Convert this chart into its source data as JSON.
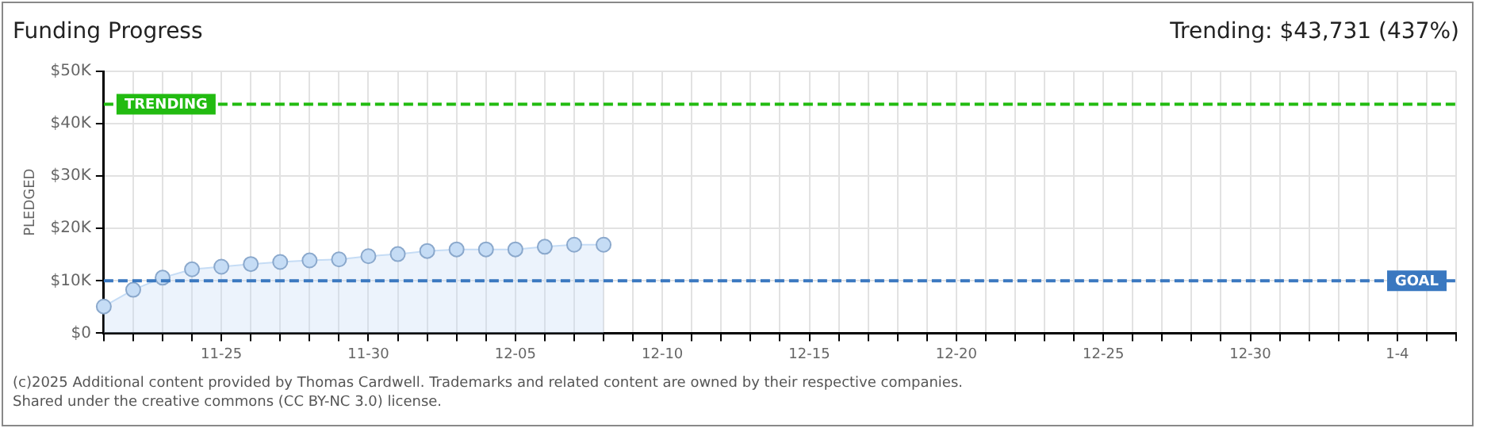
{
  "chart_data": {
    "type": "area",
    "title": "Funding Progress",
    "subtitle": "Trending: $43,731 (437%)",
    "ylabel": "PLEDGED",
    "x": [
      "2025-11-21",
      "2025-11-22",
      "2025-11-23",
      "2025-11-24",
      "2025-11-25",
      "2025-11-26",
      "2025-11-27",
      "2025-11-28",
      "2025-11-29",
      "2025-11-30",
      "2025-12-01",
      "2025-12-02",
      "2025-12-03",
      "2025-12-04",
      "2025-12-05",
      "2025-12-06",
      "2025-12-07",
      "2025-12-08"
    ],
    "series": [
      {
        "color": "#c5dcf5",
        "values": [
          5100,
          8300,
          10600,
          12200,
          12700,
          13200,
          13600,
          13900,
          14100,
          14700,
          15100,
          15700,
          16000,
          16000,
          16000,
          16500,
          16900,
          16900
        ]
      }
    ],
    "xlim": [
      "2025-11-21",
      "2026-01-06"
    ],
    "xticks": [
      {
        "value": "2025-11-21",
        "label": null
      },
      {
        "value": "2025-11-22",
        "label": null
      },
      {
        "value": "2025-11-23",
        "label": null
      },
      {
        "value": "2025-11-24",
        "label": null
      },
      {
        "value": "2025-11-25",
        "label": "11-25"
      },
      {
        "value": "2025-11-26",
        "label": null
      },
      {
        "value": "2025-11-27",
        "label": null
      },
      {
        "value": "2025-11-28",
        "label": null
      },
      {
        "value": "2025-11-29",
        "label": null
      },
      {
        "value": "2025-11-30",
        "label": "11-30"
      },
      {
        "value": "2025-12-01",
        "label": null
      },
      {
        "value": "2025-12-02",
        "label": null
      },
      {
        "value": "2025-12-03",
        "label": null
      },
      {
        "value": "2025-12-04",
        "label": null
      },
      {
        "value": "2025-12-05",
        "label": "12-05"
      },
      {
        "value": "2025-12-06",
        "label": null
      },
      {
        "value": "2025-12-07",
        "label": null
      },
      {
        "value": "2025-12-08",
        "label": null
      },
      {
        "value": "2025-12-09",
        "label": null
      },
      {
        "value": "2025-12-10",
        "label": "12-10"
      },
      {
        "value": "2025-12-11",
        "label": null
      },
      {
        "value": "2025-12-12",
        "label": null
      },
      {
        "value": "2025-12-13",
        "label": null
      },
      {
        "value": "2025-12-14",
        "label": null
      },
      {
        "value": "2025-12-15",
        "label": "12-15"
      },
      {
        "value": "2025-12-16",
        "label": null
      },
      {
        "value": "2025-12-17",
        "label": null
      },
      {
        "value": "2025-12-18",
        "label": null
      },
      {
        "value": "2025-12-19",
        "label": null
      },
      {
        "value": "2025-12-20",
        "label": "12-20"
      },
      {
        "value": "2025-12-21",
        "label": null
      },
      {
        "value": "2025-12-22",
        "label": null
      },
      {
        "value": "2025-12-23",
        "label": null
      },
      {
        "value": "2025-12-24",
        "label": null
      },
      {
        "value": "2025-12-25",
        "label": "12-25"
      },
      {
        "value": "2025-12-26",
        "label": null
      },
      {
        "value": "2025-12-27",
        "label": null
      },
      {
        "value": "2025-12-28",
        "label": null
      },
      {
        "value": "2025-12-29",
        "label": null
      },
      {
        "value": "2025-12-30",
        "label": "12-30"
      },
      {
        "value": "2025-12-31",
        "label": null
      },
      {
        "value": "2026-01-01",
        "label": null
      },
      {
        "value": "2026-01-02",
        "label": null
      },
      {
        "value": "2026-01-03",
        "label": null
      },
      {
        "value": "2026-01-04",
        "label": "1-4"
      },
      {
        "value": "2026-01-05",
        "label": null
      },
      {
        "value": "2026-01-06",
        "label": null
      }
    ],
    "ylim": [
      0,
      50000
    ],
    "yticks": [
      {
        "value": 0,
        "label": "$0"
      },
      {
        "value": 10000,
        "label": "$10K"
      },
      {
        "value": 20000,
        "label": "$20K"
      },
      {
        "value": 30000,
        "label": "$30K"
      },
      {
        "value": 40000,
        "label": "$40K"
      },
      {
        "value": 50000,
        "label": "$50K"
      }
    ],
    "ref_lines": [
      {
        "axis": "y",
        "value": 43731,
        "label": "TRENDING",
        "color": "#22bb11",
        "line_style": "dashed"
      },
      {
        "axis": "y",
        "value": 10000,
        "label": "GOAL",
        "color": "#3a78c0",
        "line_style": "dashed"
      }
    ],
    "annotations": [
      "(c)2025 Additional content provided by Thomas Cardwell. Trademarks and related content are owned by their respective companies.",
      "Shared under the creative commons (CC BY-NC 3.0) license."
    ],
    "grid": true,
    "legend": false,
    "marker": "circle",
    "line_style": "solid"
  }
}
